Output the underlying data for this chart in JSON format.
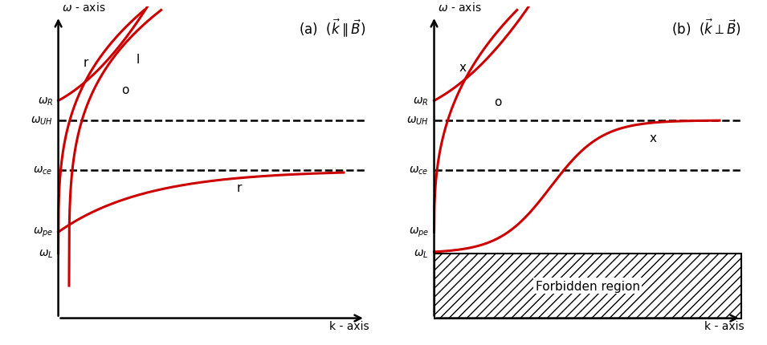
{
  "fig_width": 9.55,
  "fig_height": 4.31,
  "dpi": 100,
  "curve_color": "#cc0000",
  "curve_lw": 2.2,
  "omega_R": 0.72,
  "omega_UH": 0.655,
  "omega_ce": 0.49,
  "omega_pe": 0.285,
  "omega_L": 0.215,
  "panel_a_title": "(a)  $(\\vec{k} \\parallel \\vec{B})$",
  "panel_b_title": "(b)  $(\\vec{k}\\perp\\vec{B})$",
  "ylabel": "$\\omega$ - axis",
  "xlabel": "k - axis",
  "label_fontsize": 10,
  "title_fontsize": 12,
  "curve_label_fontsize": 11,
  "dashed_lw": 1.8,
  "axis_lw": 1.8,
  "forbidden_text": "Forbidden region",
  "forbidden_text_fontsize": 11
}
